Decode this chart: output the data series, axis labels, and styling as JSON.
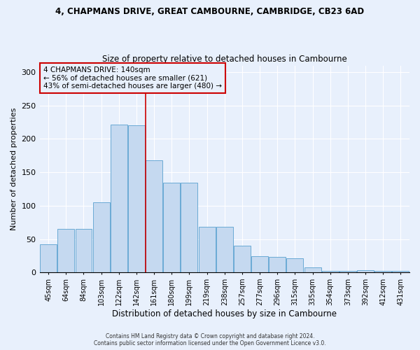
{
  "title1": "4, CHAPMANS DRIVE, GREAT CAMBOURNE, CAMBRIDGE, CB23 6AD",
  "title2": "Size of property relative to detached houses in Cambourne",
  "xlabel": "Distribution of detached houses by size in Cambourne",
  "ylabel": "Number of detached properties",
  "footer1": "Contains HM Land Registry data © Crown copyright and database right 2024.",
  "footer2": "Contains public sector information licensed under the Open Government Licence v3.0.",
  "annotation_line1": "4 CHAPMANS DRIVE: 140sqm",
  "annotation_line2": "← 56% of detached houses are smaller (621)",
  "annotation_line3": "43% of semi-detached houses are larger (480) →",
  "bar_labels": [
    "45sqm",
    "64sqm",
    "84sqm",
    "103sqm",
    "122sqm",
    "142sqm",
    "161sqm",
    "180sqm",
    "199sqm",
    "219sqm",
    "238sqm",
    "257sqm",
    "277sqm",
    "296sqm",
    "315sqm",
    "335sqm",
    "354sqm",
    "373sqm",
    "392sqm",
    "412sqm",
    "431sqm"
  ],
  "bar_values": [
    42,
    65,
    65,
    105,
    222,
    220,
    168,
    135,
    135,
    68,
    68,
    40,
    24,
    23,
    21,
    8,
    2,
    2,
    3,
    2,
    2
  ],
  "bar_color": "#c5d9f0",
  "bar_edge_color": "#6aaad4",
  "vline_color": "#cc0000",
  "vline_x": 5.5,
  "annotation_box_color": "#cc0000",
  "background_color": "#e8f0fc",
  "ylim": [
    0,
    310
  ],
  "yticks": [
    0,
    50,
    100,
    150,
    200,
    250,
    300
  ]
}
